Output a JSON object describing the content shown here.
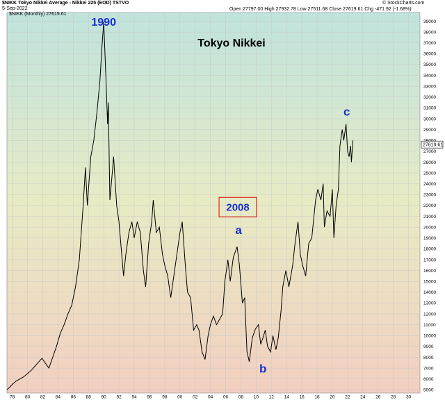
{
  "header": {
    "symbol_line": "$NIKK Tokyo Nikkei Average - Nikkei 225 (EOD) TSTVO",
    "date": "5-Sep-2022",
    "ohlc": {
      "open_label": "Open",
      "open": "27797.00",
      "high_label": "High",
      "high": "27932.78",
      "low_label": "Low",
      "low": "27511.68",
      "close_label": "Close",
      "close": "27619.61",
      "chg_label": "Chg",
      "chg": "-471.92 (-1.68%)"
    },
    "copyright": "© StockCharts.com",
    "series_label": "$NIKK (Monthly) 27619.61"
  },
  "colors": {
    "line": "#000000",
    "annotation_blue": "#1a2fcc",
    "box_red": "#e00000",
    "bg_top": "#bfe3dd",
    "bg_mid": "#e7ebc4",
    "bg_bottom": "#f2cfc0"
  },
  "chart_data": {
    "type": "line",
    "title": "Tokyo Nikkei",
    "xlabel": "",
    "ylabel": "",
    "xlim": [
      1977.3,
      2031.5
    ],
    "ylim": [
      4700,
      39800
    ],
    "x_ticks": [
      "78",
      "80",
      "82",
      "84",
      "86",
      "88",
      "90",
      "92",
      "94",
      "96",
      "98",
      "00",
      "02",
      "04",
      "06",
      "08",
      "10",
      "12",
      "14",
      "16",
      "18",
      "20",
      "22",
      "24",
      "26",
      "28",
      "30"
    ],
    "x_tick_years": [
      1978,
      1980,
      1982,
      1984,
      1986,
      1988,
      1990,
      1992,
      1994,
      1996,
      1998,
      2000,
      2002,
      2004,
      2006,
      2008,
      2010,
      2012,
      2014,
      2016,
      2018,
      2020,
      2022,
      2024,
      2026,
      2028,
      2030
    ],
    "y_ticks": [
      5000,
      6000,
      7000,
      8000,
      9000,
      10000,
      11000,
      12000,
      13000,
      14000,
      15000,
      16000,
      17000,
      18000,
      19000,
      20000,
      21000,
      22000,
      23000,
      24000,
      25000,
      26000,
      27000,
      28000,
      29000,
      30000,
      31000,
      32000,
      33000,
      34000,
      35000,
      36000,
      37000,
      38000,
      39000
    ],
    "last_value_label": "27619.61",
    "last_value": 27619.61,
    "annotations": [
      {
        "text": "1990",
        "x": 1990.0,
        "y": 38900
      },
      {
        "text": "a",
        "x": 2007.7,
        "y": 19700
      },
      {
        "text": "b",
        "x": 2010.9,
        "y": 6900
      },
      {
        "text": "c",
        "x": 2021.9,
        "y": 30600
      }
    ],
    "boxed_label": {
      "text": "2008",
      "x": 2007.6,
      "y": 21850
    },
    "series": [
      {
        "values": [
          [
            1977.3,
            5000
          ],
          [
            1977.6,
            5200
          ],
          [
            1978.0,
            5500
          ],
          [
            1978.5,
            5800
          ],
          [
            1979.0,
            6000
          ],
          [
            1979.5,
            6200
          ],
          [
            1980.0,
            6500
          ],
          [
            1980.5,
            6800
          ],
          [
            1981.0,
            7200
          ],
          [
            1981.5,
            7600
          ],
          [
            1981.9,
            7900
          ],
          [
            1982.3,
            7500
          ],
          [
            1982.8,
            7000
          ],
          [
            1983.3,
            8000
          ],
          [
            1983.8,
            9000
          ],
          [
            1984.3,
            10200
          ],
          [
            1984.8,
            11000
          ],
          [
            1985.3,
            12000
          ],
          [
            1985.8,
            12800
          ],
          [
            1986.3,
            14500
          ],
          [
            1986.8,
            17000
          ],
          [
            1987.3,
            22000
          ],
          [
            1987.6,
            25500
          ],
          [
            1987.85,
            22000
          ],
          [
            1988.3,
            26500
          ],
          [
            1988.7,
            28000
          ],
          [
            1989.1,
            30500
          ],
          [
            1989.5,
            33500
          ],
          [
            1989.8,
            37000
          ],
          [
            1990.0,
            38900
          ],
          [
            1990.3,
            33500
          ],
          [
            1990.5,
            29500
          ],
          [
            1990.6,
            31500
          ],
          [
            1990.8,
            22500
          ],
          [
            1991.0,
            24000
          ],
          [
            1991.3,
            26500
          ],
          [
            1991.7,
            22000
          ],
          [
            1992.0,
            20500
          ],
          [
            1992.3,
            18000
          ],
          [
            1992.6,
            15500
          ],
          [
            1992.9,
            17500
          ],
          [
            1993.3,
            19500
          ],
          [
            1993.7,
            20500
          ],
          [
            1994.0,
            19000
          ],
          [
            1994.4,
            20500
          ],
          [
            1994.8,
            19500
          ],
          [
            1995.2,
            16000
          ],
          [
            1995.5,
            14500
          ],
          [
            1995.9,
            18500
          ],
          [
            1996.3,
            20500
          ],
          [
            1996.5,
            22500
          ],
          [
            1996.9,
            19500
          ],
          [
            1997.3,
            20000
          ],
          [
            1997.7,
            17500
          ],
          [
            1998.0,
            16500
          ],
          [
            1998.4,
            15500
          ],
          [
            1998.8,
            13500
          ],
          [
            1999.2,
            15500
          ],
          [
            1999.7,
            18000
          ],
          [
            2000.0,
            19500
          ],
          [
            2000.3,
            20500
          ],
          [
            2000.7,
            16500
          ],
          [
            2001.0,
            14000
          ],
          [
            2001.4,
            13500
          ],
          [
            2001.8,
            10500
          ],
          [
            2002.2,
            11000
          ],
          [
            2002.5,
            10500
          ],
          [
            2002.9,
            8500
          ],
          [
            2003.3,
            7800
          ],
          [
            2003.7,
            10000
          ],
          [
            2004.0,
            11000
          ],
          [
            2004.4,
            11800
          ],
          [
            2004.8,
            11000
          ],
          [
            2005.2,
            11500
          ],
          [
            2005.6,
            12000
          ],
          [
            2005.9,
            15000
          ],
          [
            2006.3,
            17000
          ],
          [
            2006.6,
            15000
          ],
          [
            2007.0,
            17200
          ],
          [
            2007.5,
            18200
          ],
          [
            2007.8,
            16500
          ],
          [
            2008.2,
            13000
          ],
          [
            2008.5,
            13500
          ],
          [
            2008.8,
            8500
          ],
          [
            2009.1,
            7600
          ],
          [
            2009.5,
            9800
          ],
          [
            2009.9,
            10600
          ],
          [
            2010.3,
            11000
          ],
          [
            2010.6,
            9200
          ],
          [
            2010.9,
            9800
          ],
          [
            2011.2,
            10500
          ],
          [
            2011.5,
            9000
          ],
          [
            2011.9,
            8500
          ],
          [
            2012.2,
            10000
          ],
          [
            2012.6,
            8700
          ],
          [
            2012.9,
            9800
          ],
          [
            2013.3,
            12500
          ],
          [
            2013.5,
            14500
          ],
          [
            2013.9,
            16000
          ],
          [
            2014.3,
            14500
          ],
          [
            2014.8,
            16500
          ],
          [
            2015.1,
            18500
          ],
          [
            2015.5,
            20500
          ],
          [
            2015.8,
            17500
          ],
          [
            2016.1,
            16500
          ],
          [
            2016.5,
            15500
          ],
          [
            2016.9,
            18500
          ],
          [
            2017.3,
            19000
          ],
          [
            2017.8,
            22500
          ],
          [
            2018.1,
            23500
          ],
          [
            2018.5,
            22500
          ],
          [
            2018.8,
            24000
          ],
          [
            2018.95,
            20000
          ],
          [
            2019.3,
            21500
          ],
          [
            2019.7,
            21000
          ],
          [
            2020.0,
            23500
          ],
          [
            2020.2,
            19000
          ],
          [
            2020.5,
            22000
          ],
          [
            2020.8,
            23500
          ],
          [
            2021.0,
            27500
          ],
          [
            2021.3,
            29000
          ],
          [
            2021.5,
            28000
          ],
          [
            2021.8,
            29500
          ],
          [
            2022.0,
            27000
          ],
          [
            2022.2,
            26500
          ],
          [
            2022.4,
            27500
          ],
          [
            2022.5,
            26000
          ],
          [
            2022.7,
            28000
          ]
        ]
      }
    ]
  }
}
